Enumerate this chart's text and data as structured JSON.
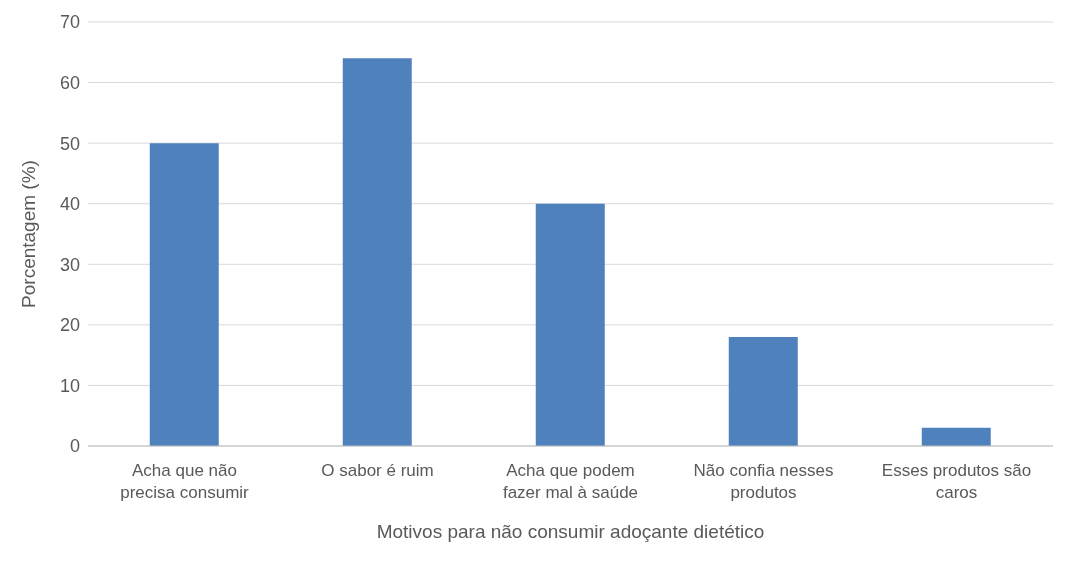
{
  "chart_data": {
    "type": "bar",
    "xlabel": "Motivos para não consumir adoçante dietético",
    "ylabel": "Porcentagem (%)",
    "categories": [
      "Acha que não precisa consumir",
      "O sabor é ruim",
      "Acha que podem fazer mal à saúde",
      "Não confia nesses produtos",
      "Esses produtos são caros"
    ],
    "values": [
      50,
      64,
      40,
      18,
      3
    ],
    "color": "#4f81bd",
    "ylim": [
      0,
      70
    ],
    "yticks": [
      0,
      10,
      20,
      30,
      40,
      50,
      60,
      70
    ],
    "grid": "y",
    "legend": false
  }
}
